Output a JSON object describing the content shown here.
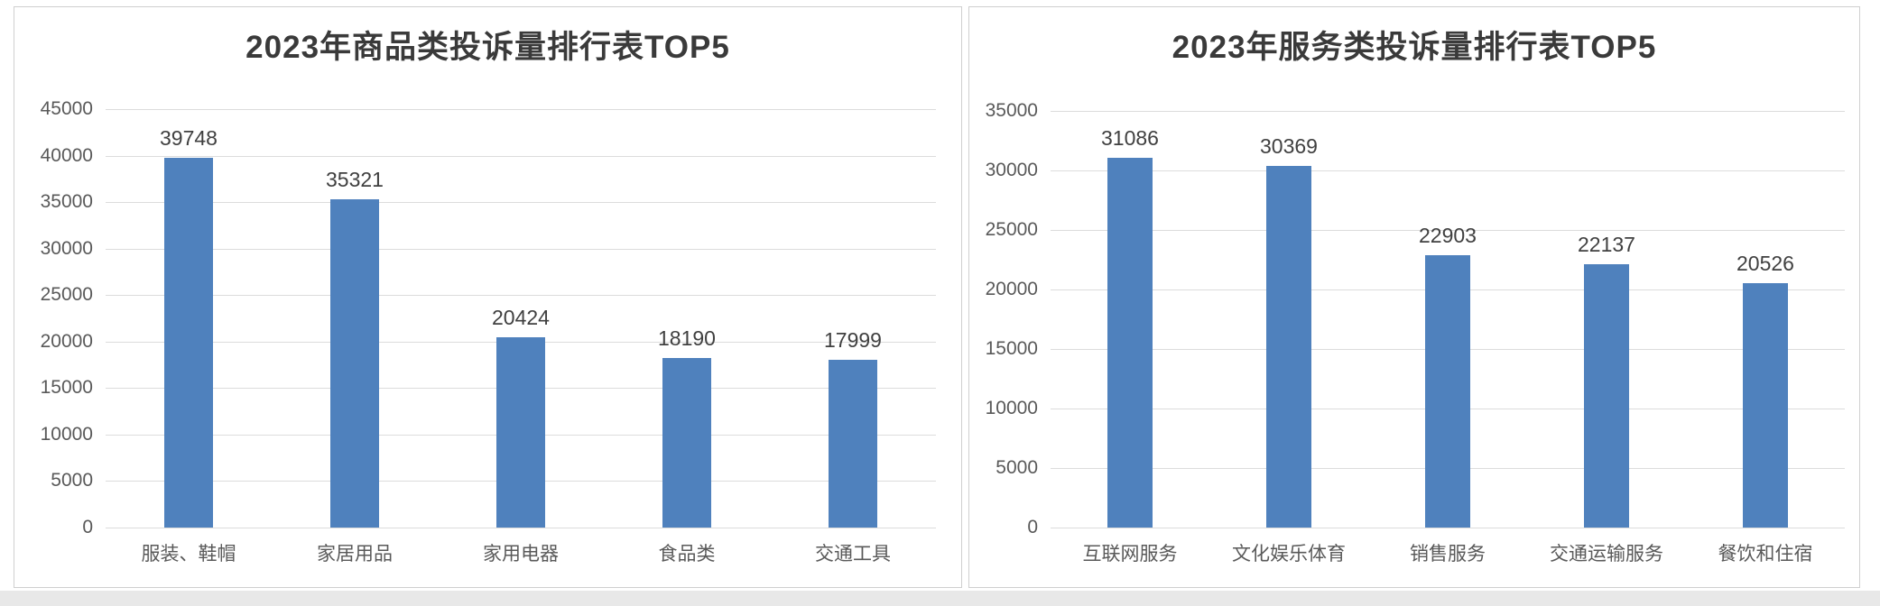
{
  "page": {
    "background": "#ffffff",
    "bottom_strip_color": "#e8e8e8",
    "panel_border_color": "#cfcfcf"
  },
  "colors": {
    "bar": "#4f81bd",
    "gridline": "#dcdcdc",
    "title_text": "#3a3a3a",
    "axis_text": "#595959",
    "value_text": "#404040"
  },
  "chart_data": [
    {
      "type": "bar",
      "title": "2023年商品类投诉量排行表TOP5",
      "categories": [
        "服装、鞋帽",
        "家居用品",
        "家用电器",
        "食品类",
        "交通工具"
      ],
      "values": [
        39748,
        35321,
        20424,
        18190,
        17999
      ],
      "data_labels": [
        "39748",
        "35321",
        "20424",
        "18190",
        "17999"
      ],
      "xlabel": "",
      "ylabel": "",
      "ylim": [
        0,
        45000
      ],
      "ytick_step": 5000,
      "yticks": [
        0,
        5000,
        10000,
        15000,
        20000,
        25000,
        30000,
        35000,
        40000,
        45000
      ],
      "grid": true,
      "legend": "none",
      "bar_color": "#4f81bd"
    },
    {
      "type": "bar",
      "title": "2023年服务类投诉量排行表TOP5",
      "categories": [
        "互联网服务",
        "文化娱乐体育",
        "销售服务",
        "交通运输服务",
        "餐饮和住宿"
      ],
      "values": [
        31086,
        30369,
        22903,
        22137,
        20526
      ],
      "data_labels": [
        "31086",
        "30369",
        "22903",
        "22137",
        "20526"
      ],
      "xlabel": "",
      "ylabel": "",
      "ylim": [
        0,
        35000
      ],
      "ytick_step": 5000,
      "yticks": [
        0,
        5000,
        10000,
        15000,
        20000,
        25000,
        30000,
        35000
      ],
      "grid": true,
      "legend": "none",
      "bar_color": "#4f81bd"
    }
  ]
}
